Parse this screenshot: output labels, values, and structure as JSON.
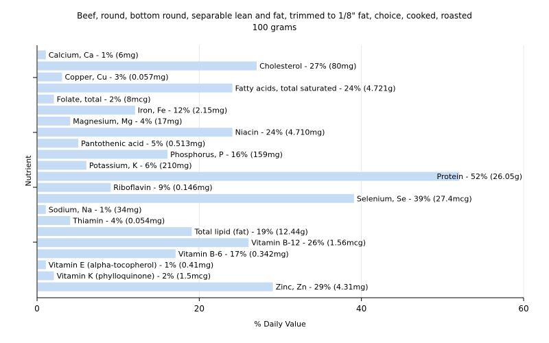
{
  "chart_data": {
    "type": "bar",
    "orientation": "horizontal",
    "title": "Beef, round, bottom round, separable lean and fat, trimmed to 1/8\" fat, choice, cooked, roasted",
    "subtitle": "100 grams",
    "xlabel": "% Daily Value",
    "ylabel": "Nutrient",
    "xlim": [
      0,
      60
    ],
    "xticks": [
      0,
      20,
      40,
      60
    ],
    "grid": true,
    "bar_color": "#c6dcf5",
    "categories": [
      "Calcium, Ca",
      "Cholesterol",
      "Copper, Cu",
      "Fatty acids, total saturated",
      "Folate, total",
      "Iron, Fe",
      "Magnesium, Mg",
      "Niacin",
      "Pantothenic acid",
      "Phosphorus, P",
      "Potassium, K",
      "Protein",
      "Riboflavin",
      "Selenium, Se",
      "Sodium, Na",
      "Thiamin",
      "Total lipid (fat)",
      "Vitamin B-12",
      "Vitamin B-6",
      "Vitamin E (alpha-tocopherol)",
      "Vitamin K (phylloquinone)",
      "Zinc, Zn"
    ],
    "values": [
      1,
      27,
      3,
      24,
      2,
      12,
      4,
      24,
      5,
      16,
      6,
      52,
      9,
      39,
      1,
      4,
      19,
      26,
      17,
      1,
      2,
      29
    ],
    "labels": [
      "Calcium, Ca - 1% (6mg)",
      "Cholesterol - 27% (80mg)",
      "Copper, Cu - 3% (0.057mg)",
      "Fatty acids, total saturated - 24% (4.721g)",
      "Folate, total - 2% (8mcg)",
      "Iron, Fe - 12% (2.15mg)",
      "Magnesium, Mg - 4% (17mg)",
      "Niacin - 24% (4.710mg)",
      "Pantothenic acid - 5% (0.513mg)",
      "Phosphorus, P - 16% (159mg)",
      "Potassium, K - 6% (210mg)",
      "Protein - 52% (26.05g)",
      "Riboflavin - 9% (0.146mg)",
      "Selenium, Se - 39% (27.4mcg)",
      "Sodium, Na - 1% (34mg)",
      "Thiamin - 4% (0.054mg)",
      "Total lipid (fat) - 19% (12.44g)",
      "Vitamin B-12 - 26% (1.56mcg)",
      "Vitamin B-6 - 17% (0.342mg)",
      "Vitamin E (alpha-tocopherol) - 1% (0.41mg)",
      "Vitamin K (phylloquinone) - 2% (1.5mcg)",
      "Zinc, Zn - 29% (4.31mg)"
    ]
  }
}
